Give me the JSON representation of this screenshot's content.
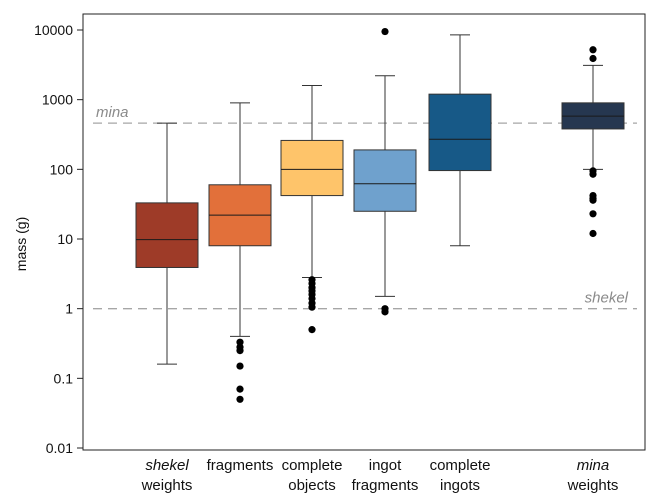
{
  "chart_data": {
    "type": "box",
    "ylabel": "mass (g)",
    "yscale": "log",
    "ylim": [
      0.01,
      10000
    ],
    "yticks": [
      "10000",
      "1000",
      "100",
      "10",
      "1",
      "0.1",
      "0.01"
    ],
    "reference_lines": [
      {
        "label": "mina",
        "value": 460,
        "style": "dashed",
        "color": "#a6a6a6"
      },
      {
        "label": "shekel",
        "value": 1,
        "style": "dashed",
        "color": "#a6a6a6"
      }
    ],
    "categories": [
      {
        "line1": "shekel",
        "line2": "weights",
        "line1_italic": true
      },
      {
        "line1": "fragments",
        "line2": "",
        "line1_italic": false
      },
      {
        "line1": "complete",
        "line2": "objects",
        "line1_italic": false
      },
      {
        "line1": "ingot",
        "line2": "fragments",
        "line1_italic": false
      },
      {
        "line1": "complete",
        "line2": "ingots",
        "line1_italic": false
      },
      {
        "line1": "mina",
        "line2": "weights",
        "line1_italic": true
      }
    ],
    "boxes": [
      {
        "whisker_low": 0.16,
        "q1": 3.9,
        "median": 9.8,
        "q3": 33,
        "whisker_high": 460,
        "outliers": [],
        "color": "#9e3b28"
      },
      {
        "whisker_low": 0.4,
        "q1": 8,
        "median": 22,
        "q3": 60,
        "whisker_high": 900,
        "outliers": [
          0.33,
          0.28,
          0.25,
          0.15,
          0.07,
          0.05
        ],
        "color": "#e2703a"
      },
      {
        "whisker_low": 2.8,
        "q1": 42,
        "median": 100,
        "q3": 260,
        "whisker_high": 1600,
        "outliers": [
          2.6,
          2.3,
          2.0,
          1.8,
          1.6,
          1.4,
          1.2,
          1.05,
          0.5
        ],
        "color": "#fec46a"
      },
      {
        "whisker_low": 1.5,
        "q1": 25,
        "median": 62,
        "q3": 190,
        "whisker_high": 2200,
        "outliers": [
          9500,
          1.0,
          0.9
        ],
        "color": "#6fa1cd"
      },
      {
        "whisker_low": 8,
        "q1": 96,
        "median": 270,
        "q3": 1200,
        "whisker_high": 8500,
        "outliers": [],
        "color": "#175987"
      },
      {
        "whisker_low": 100,
        "q1": 380,
        "median": 580,
        "q3": 900,
        "whisker_high": 3100,
        "outliers": [
          5200,
          3900,
          95,
          85,
          42,
          38,
          36,
          23,
          12
        ],
        "color": "#263750"
      }
    ]
  }
}
